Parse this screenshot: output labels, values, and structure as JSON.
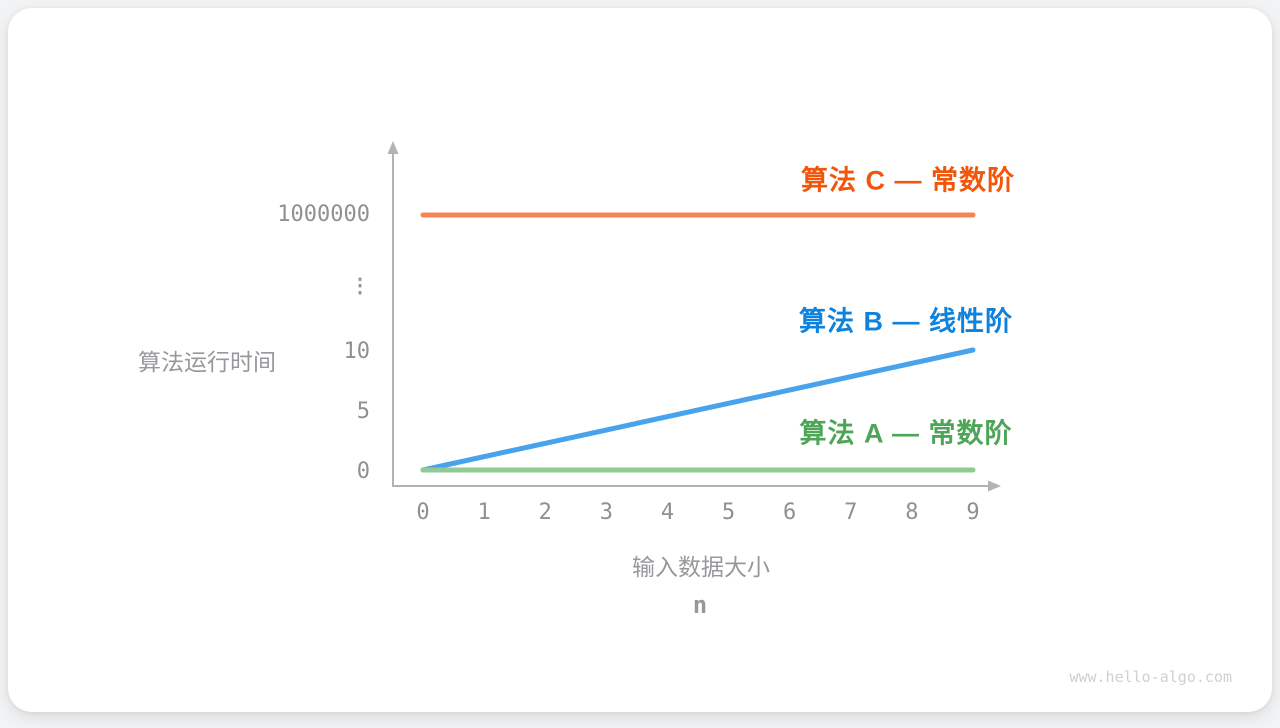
{
  "page": {
    "watermark": "www.hello-algo.com"
  },
  "chart_data": {
    "type": "line",
    "title": "",
    "ylabel": "算法运行时间",
    "xlabel": "输入数据大小",
    "xlabel_symbol": "n",
    "x_ticks": [
      "0",
      "1",
      "2",
      "3",
      "4",
      "5",
      "6",
      "7",
      "8",
      "9"
    ],
    "y_ticks": [
      {
        "label": "1000000",
        "value": 1000000
      },
      {
        "label": "⋮",
        "value": "break"
      },
      {
        "label": "10",
        "value": 10
      },
      {
        "label": "5",
        "value": 5
      },
      {
        "label": "0",
        "value": 0
      }
    ],
    "xlim": [
      0,
      9
    ],
    "ylim": [
      0,
      10
    ],
    "y_axis_broken_above": 10,
    "grid": false,
    "legend_position": "inline-right",
    "series": [
      {
        "name": "算法 C — 常数阶",
        "complexity": "常数阶",
        "line_color": "#f68457",
        "label_color": "#f1560b",
        "x": [
          0,
          9
        ],
        "y": [
          1000000,
          1000000
        ]
      },
      {
        "name": "算法 B — 线性阶",
        "complexity": "线性阶",
        "line_color": "#48a2ec",
        "label_color": "#0e82dc",
        "x": [
          0,
          9
        ],
        "y": [
          0,
          10
        ]
      },
      {
        "name": "算法 A — 常数阶",
        "complexity": "常数阶",
        "line_color": "#8fcb92",
        "label_color": "#4ea557",
        "x": [
          0,
          9
        ],
        "y": [
          0,
          0
        ]
      }
    ]
  }
}
